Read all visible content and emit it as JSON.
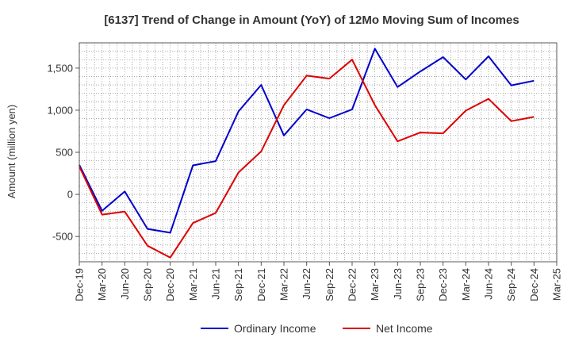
{
  "chart_data": {
    "type": "line",
    "title": "[6137]  Trend of Change in Amount (YoY) of 12Mo Moving Sum of Incomes",
    "ylabel": "Amount (million yen)",
    "xlabel": "",
    "ylim": [
      -800,
      1800
    ],
    "yticks": [
      -500,
      0,
      500,
      1000,
      1500
    ],
    "ytick_labels": [
      "-500",
      "0",
      "500",
      "1,000",
      "1,500"
    ],
    "x_tick_labels": [
      "Dec-19",
      "Mar-20",
      "Jun-20",
      "Sep-20",
      "Dec-20",
      "Mar-21",
      "Jun-21",
      "Sep-21",
      "Dec-21",
      "Mar-22",
      "Jun-22",
      "Sep-22",
      "Dec-22",
      "Mar-23",
      "Jun-23",
      "Sep-23",
      "Dec-23",
      "Mar-24",
      "Jun-24",
      "Sep-24",
      "Dec-24",
      "Mar-25"
    ],
    "grid": true,
    "legend_position": "bottom-center",
    "series": [
      {
        "name": "Ordinary Income",
        "color": "#0000cc",
        "values": [
          350,
          -195,
          35,
          -410,
          -455,
          345,
          395,
          985,
          1300,
          700,
          1010,
          905,
          1010,
          1730,
          1275,
          1460,
          1630,
          1365,
          1640,
          1295,
          1350
        ]
      },
      {
        "name": "Net Income",
        "color": "#dd0000",
        "values": [
          330,
          -240,
          -205,
          -610,
          -750,
          -340,
          -220,
          260,
          510,
          1060,
          1410,
          1375,
          1600,
          1060,
          630,
          735,
          725,
          995,
          1135,
          870,
          920
        ]
      }
    ]
  }
}
